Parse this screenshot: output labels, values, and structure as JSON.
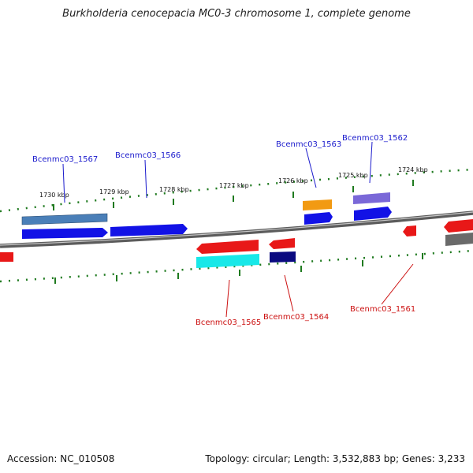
{
  "title": "Burkholderia cenocepacia MC0-3 chromosome 1, complete genome",
  "footer": {
    "accession": "Accession: NC_010508",
    "summary": "Topology: circular; Length: 3,532,883 bp; Genes: 3,233"
  },
  "ticks": [
    "1730 kbp",
    "1729 kbp",
    "1728 kbp",
    "1727 kbp",
    "1726 kbp",
    "1725 kbp",
    "1724 kbp"
  ],
  "genes": {
    "forward": [
      "Bcenmc03_1567",
      "Bcenmc03_1566",
      "Bcenmc03_1563",
      "Bcenmc03_1562"
    ],
    "reverse": [
      "Bcenmc03_1565",
      "Bcenmc03_1564",
      "Bcenmc03_1561"
    ]
  },
  "colors": {
    "forward_label": "#1a1acc",
    "reverse_label": "#cc1111",
    "tick": "#1f7a1f",
    "backbone": "#8a8a8a",
    "blue": "#1212e6",
    "steelblue": "#4a7fb8",
    "red": "#e81818",
    "cyan": "#18e8e8",
    "navy": "#0a0a80",
    "orange": "#f29a12",
    "purple": "#7a68d8",
    "gray": "#6a6a6a"
  }
}
